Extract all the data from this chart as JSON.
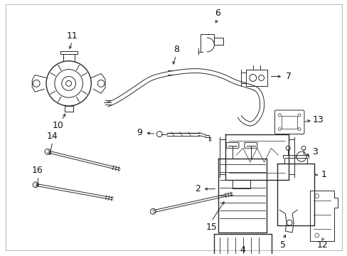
{
  "background_color": "#ffffff",
  "line_color": "#2a2a2a",
  "label_color": "#111111",
  "fig_width": 4.89,
  "fig_height": 3.6,
  "dpi": 100,
  "border_color": "#888888"
}
